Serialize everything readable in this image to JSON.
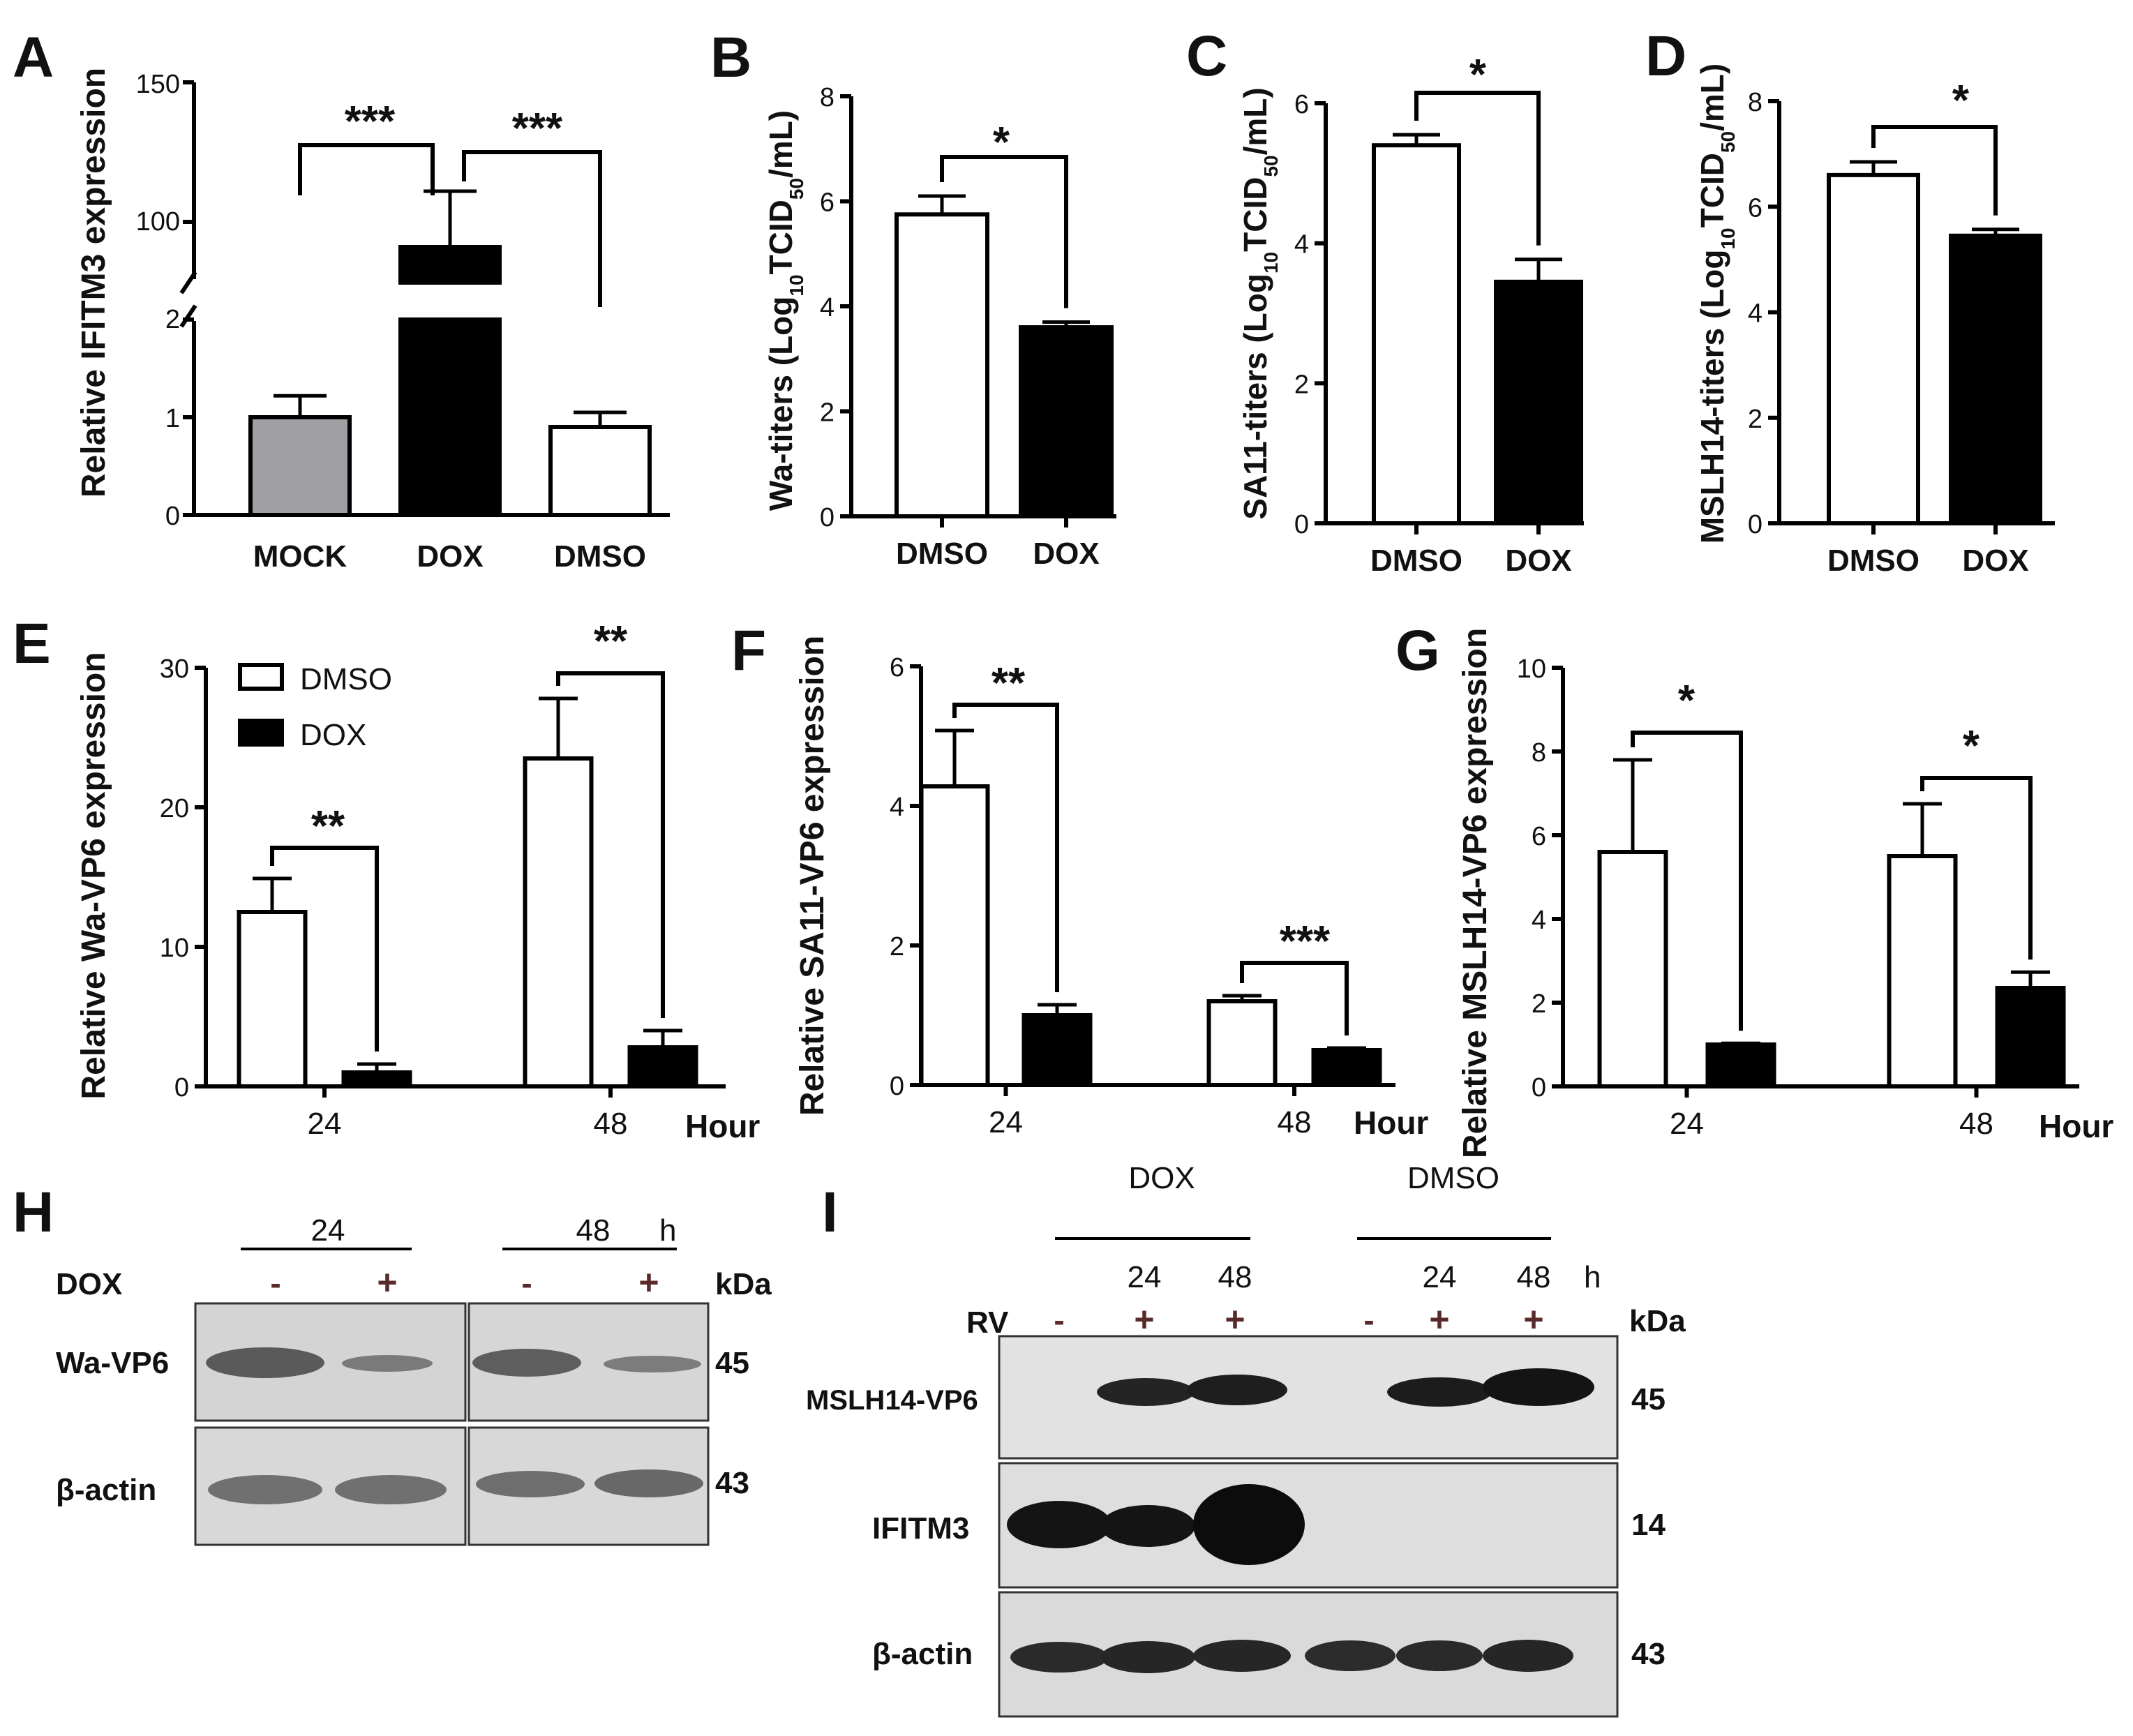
{
  "panels": {
    "A": {
      "letter": "A",
      "ylabel": "Relative IFITM3 expression",
      "upper_ticks": [
        "150",
        "100"
      ],
      "lower_ticks": [
        "2",
        "1",
        "0"
      ],
      "sig": [
        "***",
        "***"
      ]
    },
    "B": {
      "letter": "B",
      "ylabel_main": "Wa-titers (Log",
      "ylabel_sub": "10",
      "ylabel_mid": "TCID",
      "ylabel_sub2": "50",
      "ylabel_end": "/mL)",
      "sig": "*"
    },
    "C": {
      "letter": "C",
      "ylabel_main": "SA11-titers (Log",
      "ylabel_sub": "10",
      "ylabel_mid": "TCID",
      "ylabel_sub2": "50",
      "ylabel_end": "/mL)",
      "sig": "*"
    },
    "D": {
      "letter": "D",
      "ylabel_main": "MSLH14-titers (Log",
      "ylabel_sub": "10",
      "ylabel_mid": "TCID",
      "ylabel_sub2": "50",
      "ylabel_end": "/mL)",
      "sig": "*"
    },
    "E": {
      "letter": "E",
      "ylabel": "Relative Wa-VP6 expression",
      "xunit": "Hour",
      "sig": [
        "**",
        "**"
      ]
    },
    "F": {
      "letter": "F",
      "ylabel": "Relative SA11-VP6 expression",
      "xunit": "Hour",
      "sig": [
        "**",
        "***"
      ]
    },
    "G": {
      "letter": "G",
      "ylabel": "Relative MSLH14-VP6 expression",
      "xunit": "Hour",
      "sig": [
        "*",
        "*"
      ]
    },
    "H": {
      "letter": "H",
      "time_24": "24",
      "time_48": "48",
      "unit_h": "h",
      "row_label": "DOX",
      "minus": "-",
      "plus": "+",
      "kda": "kDa",
      "band_labels": [
        "Wa-VP6",
        "β-actin"
      ],
      "band_kda": [
        "45",
        "43"
      ]
    },
    "I": {
      "letter": "I",
      "group_dox": "DOX",
      "group_dmso": "DMSO",
      "times": [
        "24",
        "48",
        "24",
        "48"
      ],
      "unit_h": "h",
      "row_label": "RV",
      "signs": [
        "-",
        "+",
        "+",
        "-",
        "+",
        "+"
      ],
      "kda": "kDa",
      "band_labels": [
        "MSLH14-VP6",
        "IFITM3",
        "β-actin"
      ],
      "band_kda": [
        "45",
        "14",
        "43"
      ]
    }
  },
  "legend": {
    "items": [
      "DMSO",
      "DOX"
    ]
  },
  "chart_data": [
    {
      "panel": "A",
      "type": "bar",
      "categories": [
        "MOCK",
        "DOX",
        "DMSO"
      ],
      "values": [
        1.0,
        91,
        0.9
      ],
      "errors": [
        0.22,
        20,
        0.15
      ],
      "colors": [
        "#a0a0a4",
        "#000000",
        "#ffffff"
      ],
      "ylabel": "Relative IFITM3 expression",
      "ylim_lower": [
        0,
        2
      ],
      "ylim_upper": [
        75,
        150
      ],
      "axis_break": [
        2,
        75
      ]
    },
    {
      "panel": "B",
      "type": "bar",
      "categories": [
        "DMSO",
        "DOX"
      ],
      "values": [
        5.75,
        3.6
      ],
      "errors": [
        0.35,
        0.1
      ],
      "ylim": [
        0,
        8
      ],
      "yticks": [
        0,
        2,
        4,
        6,
        8
      ]
    },
    {
      "panel": "C",
      "type": "bar",
      "categories": [
        "DMSO",
        "DOX"
      ],
      "values": [
        5.4,
        3.45
      ],
      "errors": [
        0.15,
        0.32
      ],
      "ylim": [
        0,
        6
      ],
      "yticks": [
        0,
        2,
        4,
        6
      ]
    },
    {
      "panel": "D",
      "type": "bar",
      "categories": [
        "DMSO",
        "DOX"
      ],
      "values": [
        6.6,
        5.45
      ],
      "errors": [
        0.25,
        0.12
      ],
      "ylim": [
        0,
        8
      ],
      "yticks": [
        0,
        2,
        4,
        6,
        8
      ]
    },
    {
      "panel": "E",
      "type": "bar",
      "categories": [
        "24",
        "48"
      ],
      "series": [
        {
          "name": "DMSO",
          "values": [
            12.5,
            23.5
          ],
          "errors": [
            2.4,
            4.3
          ]
        },
        {
          "name": "DOX",
          "values": [
            1.0,
            2.8
          ],
          "errors": [
            0.6,
            1.2
          ]
        }
      ],
      "ylim": [
        0,
        30
      ],
      "yticks": [
        0,
        10,
        20,
        30
      ]
    },
    {
      "panel": "F",
      "type": "bar",
      "categories": [
        "24",
        "48"
      ],
      "series": [
        {
          "name": "DMSO",
          "values": [
            4.28,
            1.2
          ],
          "errors": [
            0.8,
            0.08
          ]
        },
        {
          "name": "DOX",
          "values": [
            1.0,
            0.5
          ],
          "errors": [
            0.15,
            0.03
          ]
        }
      ],
      "ylim": [
        0,
        6
      ],
      "yticks": [
        0,
        2,
        4,
        6
      ]
    },
    {
      "panel": "G",
      "type": "bar",
      "categories": [
        "24",
        "48"
      ],
      "series": [
        {
          "name": "DMSO",
          "values": [
            5.6,
            5.5
          ],
          "errors": [
            2.2,
            1.25
          ]
        },
        {
          "name": "DOX",
          "values": [
            1.0,
            2.35
          ],
          "errors": [
            0.03,
            0.38
          ]
        }
      ],
      "ylim": [
        0,
        10
      ],
      "yticks": [
        0,
        2,
        4,
        6,
        8,
        10
      ]
    }
  ]
}
